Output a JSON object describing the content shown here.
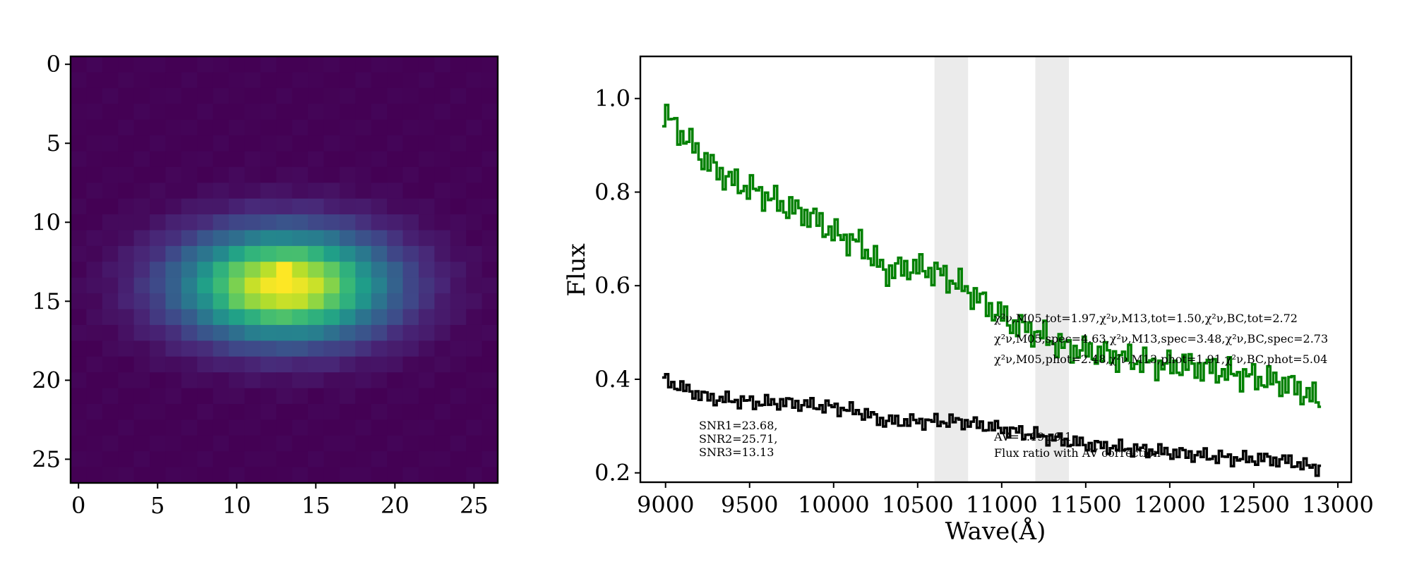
{
  "chart_data": [
    {
      "type": "heatmap",
      "colormap": "viridis",
      "grid_size": [
        27,
        27
      ],
      "peak_pixel": [
        13,
        14
      ],
      "x_ticks": [
        "0",
        "5",
        "10",
        "15",
        "20",
        "25"
      ],
      "y_ticks": [
        "0",
        "5",
        "10",
        "15",
        "20",
        "25"
      ],
      "xlim": [
        -0.5,
        26.5
      ],
      "ylim": [
        26.5,
        -0.5
      ]
    },
    {
      "type": "line",
      "xlabel": "Wave(Å)",
      "ylabel": "Flux",
      "xlim": [
        8850,
        13080
      ],
      "ylim": [
        0.18,
        1.09
      ],
      "x_ticks": [
        "9000",
        "9500",
        "10000",
        "10500",
        "11000",
        "11500",
        "12000",
        "12500",
        "13000"
      ],
      "y_ticks": [
        "0.2",
        "0.4",
        "0.6",
        "0.8",
        "1.0"
      ],
      "shaded_bands": [
        [
          10600,
          10800
        ],
        [
          11200,
          11400
        ]
      ],
      "series": [
        {
          "color": "#008000",
          "x": [
            8980,
            9100,
            9250,
            9400,
            9550,
            9700,
            9850,
            10000,
            10150,
            10300,
            10450,
            10600,
            10750,
            10900,
            11050,
            11200,
            11350,
            11500,
            11650,
            11800,
            11950,
            12100,
            12250,
            12400,
            12550,
            12700,
            12800,
            12900
          ],
          "y": [
            0.97,
            0.92,
            0.86,
            0.82,
            0.8,
            0.77,
            0.75,
            0.71,
            0.69,
            0.63,
            0.64,
            0.63,
            0.6,
            0.56,
            0.52,
            0.5,
            0.47,
            0.46,
            0.45,
            0.44,
            0.43,
            0.43,
            0.42,
            0.41,
            0.4,
            0.39,
            0.37,
            0.35
          ]
        },
        {
          "color": "#000000",
          "x": [
            8980,
            9100,
            9250,
            9400,
            9550,
            9700,
            9850,
            10000,
            10150,
            10300,
            10450,
            10600,
            10750,
            10900,
            11050,
            11200,
            11350,
            11500,
            11650,
            11800,
            11950,
            12100,
            12250,
            12400,
            12550,
            12700,
            12800,
            12900
          ],
          "y": [
            0.4,
            0.38,
            0.36,
            0.355,
            0.35,
            0.35,
            0.345,
            0.34,
            0.33,
            0.31,
            0.31,
            0.31,
            0.31,
            0.3,
            0.29,
            0.28,
            0.27,
            0.26,
            0.255,
            0.25,
            0.245,
            0.24,
            0.235,
            0.23,
            0.23,
            0.225,
            0.215,
            0.21
          ]
        }
      ],
      "annotations": {
        "snr_lines": [
          "SNR1=23.68,",
          "SNR2=25.71,",
          "SNR3=13.13"
        ],
        "chi_lines": [
          "χ²ν,M05,tot=1.97,χ²ν,M13,tot=1.50,χ²ν,BC,tot=2.72",
          "χ²ν,M05,spec=4.63,χ²ν,M13,spec=3.48,χ²ν,BC,spec=2.73",
          "χ²ν,M05,phot=2.48,χ²ν,M13,phot=1.91,χ²ν,BC,phot=5.04"
        ],
        "av_lines": [
          "AV=1.19±0.1",
          "Flux ratio with AV correction"
        ]
      }
    }
  ]
}
